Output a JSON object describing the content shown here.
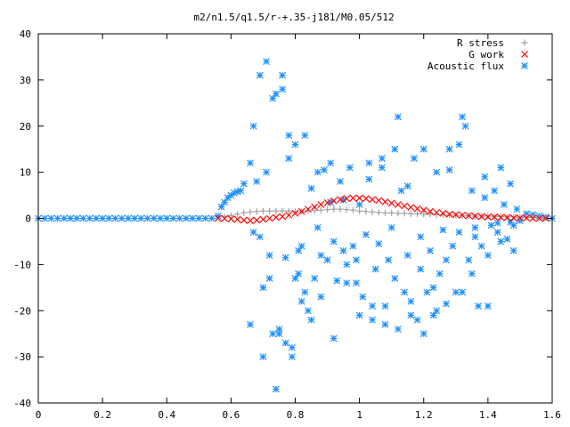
{
  "chart_data": {
    "type": "scatter",
    "title": "m2/n1.5/q1.5/r-+.35-j181/M0.05/512",
    "xlabel": "",
    "ylabel": "",
    "xlim": [
      0,
      1.6
    ],
    "ylim": [
      -40,
      40
    ],
    "x_ticks": [
      "0",
      "0.2",
      "0.4",
      "0.6",
      "0.8",
      "1",
      "1.2",
      "1.4",
      "1.6"
    ],
    "y_ticks": [
      "40",
      "30",
      "20",
      "10",
      "0",
      "-10",
      "-20",
      "-30",
      "-40"
    ],
    "grid": false,
    "legend_position": "top-right",
    "series": [
      {
        "name": "R stress",
        "marker": "plus",
        "color": "#a0a0a0",
        "x": [
          0.58,
          0.6,
          0.62,
          0.64,
          0.66,
          0.68,
          0.7,
          0.72,
          0.74,
          0.76,
          0.78,
          0.8,
          0.82,
          0.84,
          0.86,
          0.88,
          0.9,
          0.92,
          0.94,
          0.96,
          0.98,
          1.0,
          1.02,
          1.04,
          1.06,
          1.08,
          1.1,
          1.12,
          1.14,
          1.16,
          1.18,
          1.2,
          1.22,
          1.24,
          1.26,
          1.28,
          1.3,
          1.32,
          1.34,
          1.36,
          1.38,
          1.4,
          1.42,
          1.44,
          1.46,
          1.48,
          1.5,
          1.52,
          1.54,
          1.56,
          1.58
        ],
        "y": [
          0.3,
          0.6,
          0.9,
          1.2,
          1.4,
          1.5,
          1.6,
          1.6,
          1.6,
          1.6,
          1.6,
          1.5,
          1.5,
          1.6,
          1.7,
          1.8,
          1.9,
          2.0,
          2.0,
          1.9,
          1.8,
          1.6,
          1.5,
          1.4,
          1.3,
          1.2,
          1.2,
          1.1,
          1.1,
          1.0,
          1.0,
          0.9,
          0.9,
          0.8,
          0.8,
          0.7,
          0.7,
          0.6,
          0.6,
          0.5,
          0.5,
          0.5,
          0.4,
          0.4,
          0.3,
          0.3,
          0.3,
          0.2,
          0.2,
          0.2,
          0.1
        ]
      },
      {
        "name": "G work",
        "marker": "cross",
        "color": "#ff0000",
        "x": [
          0.56,
          0.58,
          0.6,
          0.62,
          0.64,
          0.66,
          0.68,
          0.7,
          0.72,
          0.74,
          0.76,
          0.78,
          0.8,
          0.82,
          0.84,
          0.86,
          0.88,
          0.9,
          0.92,
          0.94,
          0.96,
          0.98,
          1.0,
          1.02,
          1.04,
          1.06,
          1.08,
          1.1,
          1.12,
          1.14,
          1.16,
          1.18,
          1.2,
          1.22,
          1.24,
          1.26,
          1.28,
          1.3,
          1.32,
          1.34,
          1.36,
          1.38,
          1.4,
          1.42,
          1.44,
          1.46,
          1.48,
          1.5,
          1.52,
          1.54,
          1.56,
          1.58
        ],
        "y": [
          0.0,
          0.0,
          -0.1,
          -0.2,
          -0.4,
          -0.5,
          -0.4,
          -0.2,
          0.0,
          0.2,
          0.4,
          0.7,
          1.1,
          1.5,
          2.0,
          2.5,
          3.0,
          3.4,
          3.8,
          4.1,
          4.3,
          4.4,
          4.4,
          4.3,
          4.1,
          3.9,
          3.6,
          3.3,
          3.0,
          2.7,
          2.4,
          2.1,
          1.8,
          1.5,
          1.3,
          1.1,
          0.9,
          0.8,
          0.7,
          0.6,
          0.5,
          0.4,
          0.3,
          0.3,
          0.2,
          0.2,
          0.1,
          0.1,
          0.1,
          0.0,
          0.0,
          0.0
        ]
      },
      {
        "name": "Acoustic flux",
        "marker": "star",
        "color": "#1e90ff",
        "x": [
          0.0,
          0.02,
          0.04,
          0.06,
          0.08,
          0.1,
          0.12,
          0.14,
          0.16,
          0.18,
          0.2,
          0.22,
          0.24,
          0.26,
          0.28,
          0.3,
          0.32,
          0.34,
          0.36,
          0.38,
          0.4,
          0.42,
          0.44,
          0.46,
          0.48,
          0.5,
          0.52,
          0.54,
          0.56,
          0.57,
          0.58,
          0.59,
          0.6,
          0.61,
          0.62,
          0.63,
          0.64,
          0.66,
          0.67,
          0.68,
          0.69,
          0.7,
          0.71,
          0.72,
          0.73,
          0.74,
          0.75,
          0.76,
          0.77,
          0.78,
          0.79,
          0.8,
          0.81,
          0.82,
          0.83,
          0.84,
          0.85,
          0.86,
          0.87,
          0.88,
          0.89,
          0.9,
          0.91,
          0.92,
          0.93,
          0.94,
          0.95,
          0.96,
          0.97,
          0.98,
          0.99,
          1.0,
          1.01,
          1.02,
          1.03,
          1.04,
          1.05,
          1.06,
          1.07,
          1.08,
          1.09,
          1.1,
          1.11,
          1.12,
          1.13,
          1.14,
          1.15,
          1.16,
          1.17,
          1.18,
          1.19,
          1.2,
          1.21,
          1.22,
          1.23,
          1.24,
          1.25,
          1.26,
          1.27,
          1.28,
          1.29,
          1.3,
          1.31,
          1.32,
          1.33,
          1.34,
          1.35,
          1.36,
          1.37,
          1.38,
          1.39,
          1.4,
          1.41,
          1.42,
          1.43,
          1.44,
          1.45,
          1.46,
          1.47,
          1.48,
          1.49,
          1.5,
          1.52,
          1.54,
          1.56,
          1.58,
          1.6,
          0.67,
          0.7,
          0.72,
          0.74,
          0.76,
          0.78,
          0.8,
          0.82,
          0.66,
          0.69,
          0.71,
          0.73,
          0.75,
          0.77,
          0.79,
          0.81,
          0.83,
          0.85,
          0.88,
          0.92,
          0.96,
          1.0,
          1.04,
          1.08,
          1.12,
          1.16,
          1.2,
          1.24,
          1.28,
          1.32,
          1.36,
          1.4,
          1.44,
          1.48,
          0.87,
          0.91,
          0.95,
          0.99,
          1.03,
          1.07,
          1.11,
          1.15,
          1.19,
          1.23,
          1.27,
          1.31,
          1.35,
          1.39,
          1.43,
          1.47
        ],
        "y": [
          0.0,
          0.0,
          0.0,
          0.0,
          0.0,
          0.0,
          0.0,
          0.0,
          0.0,
          0.0,
          0.0,
          0.0,
          0.0,
          0.0,
          0.0,
          0.0,
          0.0,
          0.0,
          0.0,
          0.0,
          0.0,
          0.0,
          0.0,
          0.0,
          0.0,
          0.0,
          0.0,
          0.0,
          0.5,
          2.5,
          3.5,
          4.5,
          5.0,
          5.5,
          5.8,
          6.0,
          7.5,
          12.0,
          -3.0,
          8.0,
          -4.0,
          -15.0,
          10.0,
          -8.0,
          26.0,
          27.0,
          -25.0,
          31.0,
          -8.5,
          13.0,
          -30.0,
          16.0,
          -12.0,
          -6.0,
          18.0,
          -20.0,
          6.5,
          -13.0,
          -2.0,
          -17.0,
          10.5,
          -9.0,
          3.5,
          -5.0,
          -13.5,
          8.0,
          -7.0,
          -10.0,
          11.0,
          -6.0,
          -14.0,
          3.0,
          -17.0,
          -3.5,
          12.0,
          -22.0,
          -11.0,
          -5.5,
          13.0,
          -19.0,
          -9.0,
          -2.0,
          -13.0,
          22.0,
          6.0,
          -16.0,
          -8.0,
          -18.0,
          13.0,
          -22.0,
          -4.0,
          15.0,
          -16.0,
          -7.0,
          -21.0,
          10.0,
          -12.0,
          -2.5,
          -18.5,
          10.5,
          -6.0,
          -16.0,
          -3.0,
          -16.0,
          20.0,
          -9.0,
          6.0,
          -2.0,
          -19.0,
          -6.0,
          9.0,
          -8.0,
          -1.5,
          6.0,
          -3.0,
          -5.0,
          3.0,
          -4.5,
          7.5,
          -1.5,
          2.0,
          -0.5,
          1.0,
          0.8,
          0.5,
          0.3,
          0.0,
          20.0,
          -30.0,
          -13.0,
          -37.0,
          28.0,
          18.0,
          -13.0,
          -18.0,
          -23.0,
          31.0,
          34.0,
          -25.0,
          -24.0,
          -27.0,
          -28.0,
          -7.0,
          -16.0,
          -22.0,
          -8.0,
          -26.0,
          -14.0,
          -21.0,
          -19.0,
          -23.0,
          -24.0,
          -21.0,
          -25.0,
          -20.0,
          15.0,
          22.0,
          -4.0,
          -19.0,
          11.0,
          -7.0,
          10.0,
          12.0,
          4.0,
          -9.0,
          8.5,
          11.0,
          15.0,
          7.0,
          -11.0,
          -15.0,
          -9.0,
          16.0,
          -12.0,
          4.5,
          -1.0,
          -0.8
        ]
      }
    ]
  }
}
